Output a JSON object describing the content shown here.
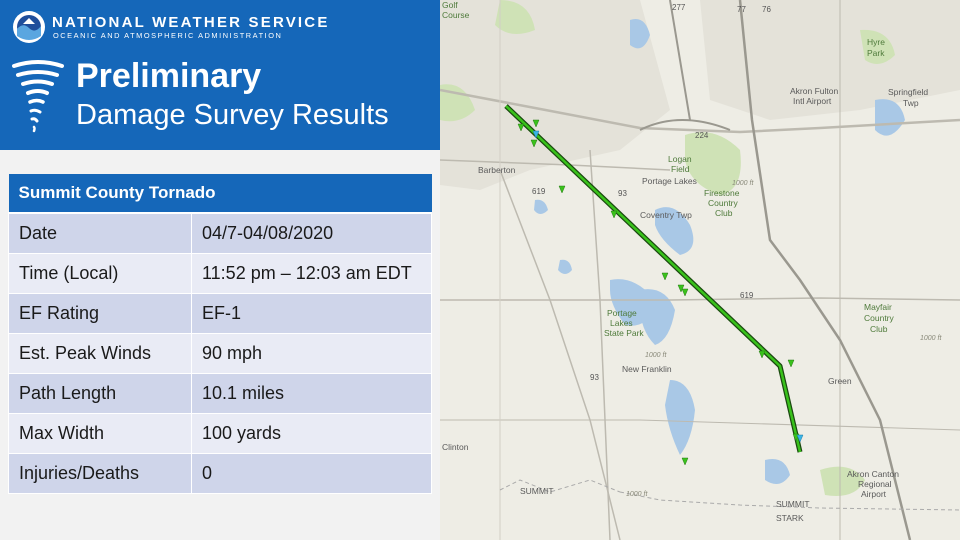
{
  "header": {
    "agency_name": "NATIONAL WEATHER SERVICE",
    "agency_subtitle": "OCEANIC AND ATMOSPHERIC ADMINISTRATION",
    "title_line1": "Preliminary",
    "title_line2": "Damage Survey Results",
    "logo_icon": "noaa-logo",
    "title_icon": "tornado-icon"
  },
  "survey_table": {
    "title": "Summit County Tornado",
    "rows": [
      {
        "label": "Date",
        "value": "04/7-04/08/2020"
      },
      {
        "label": "Time (Local)",
        "value": "11:52 pm – 12:03 am EDT"
      },
      {
        "label": "EF Rating",
        "value": "EF-1"
      },
      {
        "label": "Est. Peak Winds",
        "value": "90 mph"
      },
      {
        "label": "Path Length",
        "value": "10.1 miles"
      },
      {
        "label": "Max Width",
        "value": "100 yards"
      },
      {
        "label": "Injuries/Deaths",
        "value": "0"
      }
    ]
  },
  "map": {
    "places": {
      "barberton": "Barberton",
      "portage_lakes": "Portage Lakes",
      "coventry_twp": "Coventry Twp",
      "new_franklin": "New Franklin",
      "green": "Green",
      "clinton": "Clinton",
      "summit": "SUMMIT",
      "summit_county": "SUMMIT",
      "stark_county": "STARK",
      "springfield": "Springfield",
      "springfield_twp": "Twp",
      "akron_fulton": "Akron Fulton",
      "intl_airport": "Intl Airport",
      "hyre": "Hyre",
      "park": "Park",
      "logan": "Logan",
      "field": "Field",
      "firestone": "Firestone",
      "country": "Country",
      "club": "Club",
      "portage_state_1": "Portage",
      "portage_state_2": "Lakes",
      "portage_state_3": "State Park",
      "mayfair": "Mayfair",
      "mayfair_country": "Country",
      "mayfair_club": "Club",
      "akron_canton": "Akron Canton",
      "regional": "Regional",
      "airport": "Airport",
      "golf": "Golf",
      "course": "Course",
      "elev_1": "1000 ft",
      "elev_2": "1000 ft",
      "elev_3": "1000 ft",
      "elev_4": "1000 ft"
    },
    "routes": {
      "i77": "77",
      "i277": "277",
      "r224": "224",
      "r76": "76",
      "r619a": "619",
      "r619b": "619",
      "r93a": "93",
      "r93b": "93"
    },
    "colors": {
      "track": "#39c21b",
      "track_outline": "#1b4a10",
      "water": "#a9c8e6",
      "park": "#cfe2b6",
      "road": "#bdbab0",
      "highway": "#9a988f",
      "damage_marker": "#39c21b",
      "start_end_marker": "#39b5e6"
    }
  }
}
